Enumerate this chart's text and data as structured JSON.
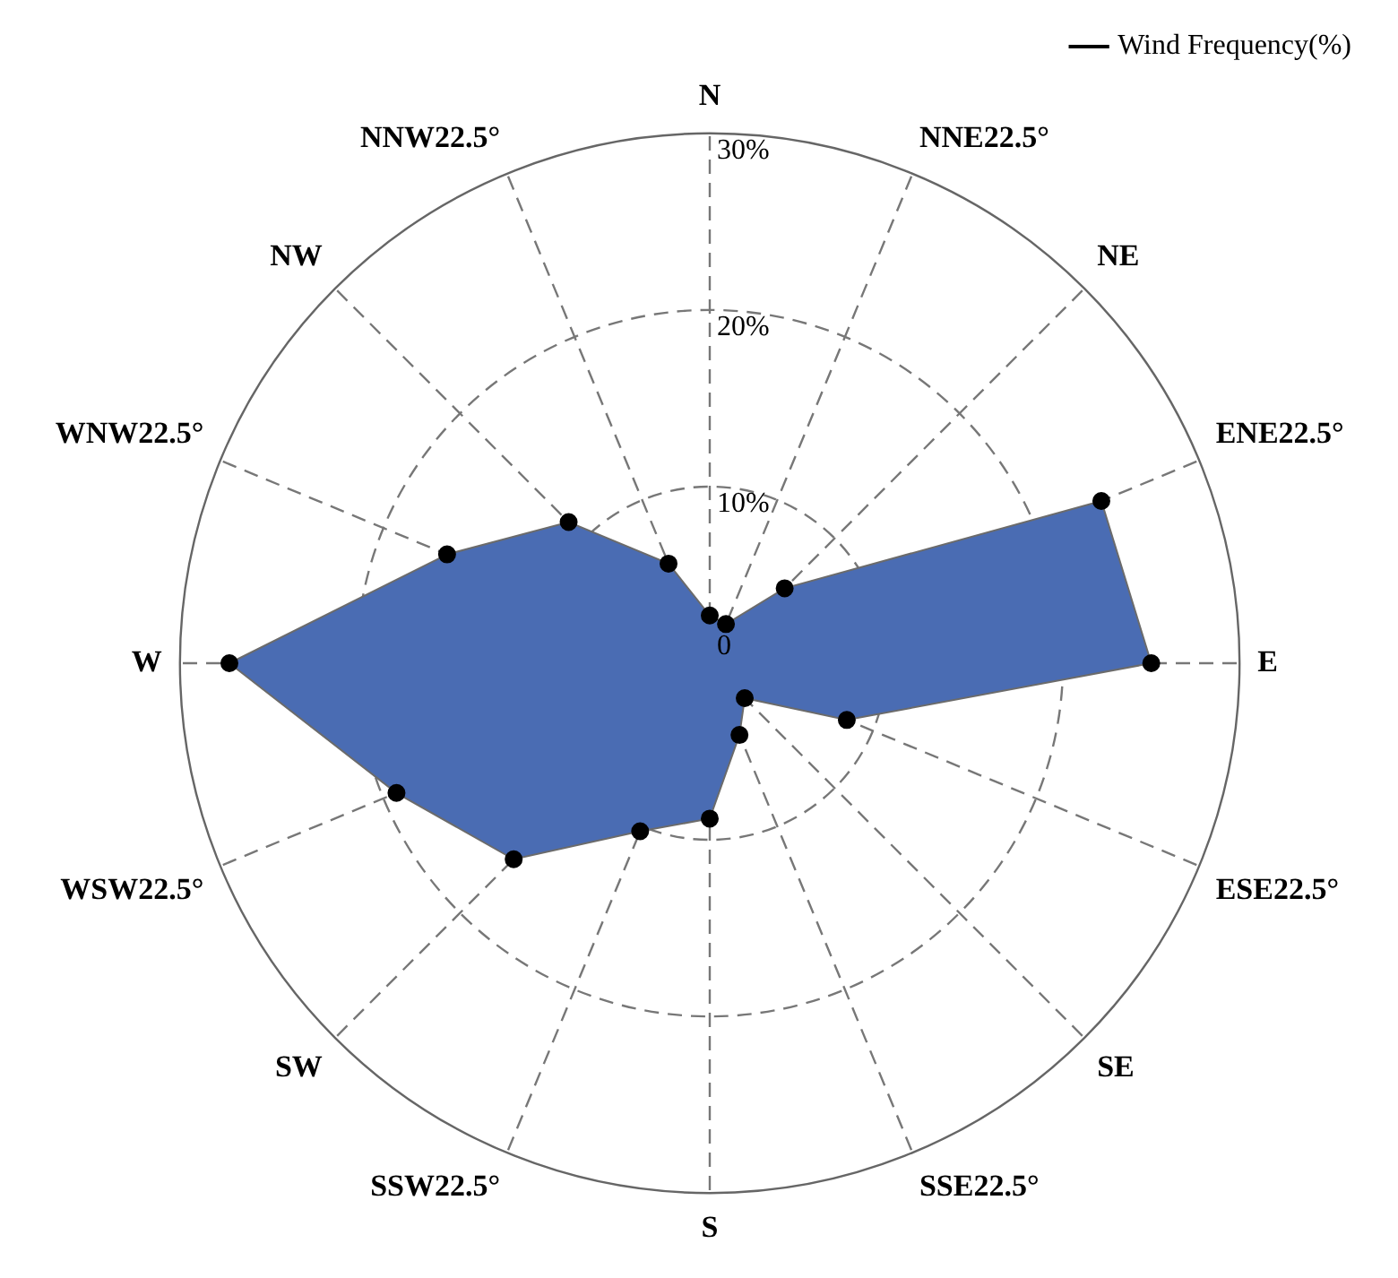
{
  "chart_data": {
    "type": "radar",
    "categories": [
      "N",
      "NNE22.5°",
      "NE",
      "ENE22.5°",
      "E",
      "ESE22.5°",
      "SE",
      "SSE22.5°",
      "S",
      "SSW22.5°",
      "SW",
      "WSW22.5°",
      "W",
      "WNW22.5°",
      "NW",
      "NNW22.5°"
    ],
    "series": [
      {
        "name": "Wind Frequency(%)",
        "color": "#4a6cb3",
        "values": [
          2.7,
          2.4,
          6.0,
          24,
          25,
          8.4,
          2.8,
          4.4,
          8.8,
          10.3,
          15.7,
          19.2,
          27.2,
          16.1,
          11.3,
          6.1
        ]
      }
    ],
    "ylim": [
      0,
      30
    ],
    "yticks": [
      {
        "value": 0,
        "label": "0"
      },
      {
        "value": 10,
        "label": "10%"
      },
      {
        "value": 20,
        "label": "20%"
      },
      {
        "value": 30,
        "label": "30%"
      }
    ],
    "grid": true,
    "legend": "top right",
    "marker": "circle"
  }
}
